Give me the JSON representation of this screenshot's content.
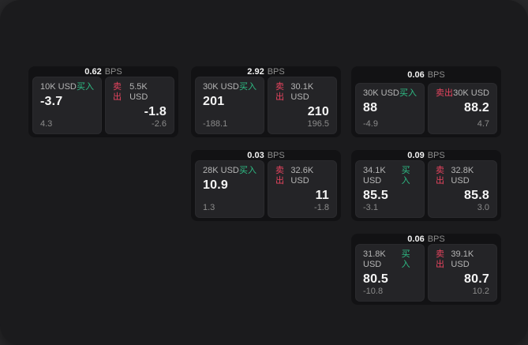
{
  "ui": {
    "bps_unit": "BPS",
    "buy_label": "买入",
    "sell_label": "卖出"
  },
  "colors": {
    "buy": "#2ebd85",
    "sell": "#e8445f",
    "page_bg": "#28282a",
    "container_bg": "#1b1b1d",
    "card_bg": "#121214",
    "panel_bg": "#242427"
  },
  "cards": [
    {
      "row": 1,
      "col": 1,
      "bps": "0.62",
      "buy": {
        "amount": "10K USD",
        "value": "-3.7",
        "sub": "4.3"
      },
      "sell": {
        "amount": "5.5K USD",
        "value": "-1.8",
        "sub": "-2.6"
      }
    },
    {
      "row": 1,
      "col": 2,
      "bps": "2.92",
      "buy": {
        "amount": "30K USD",
        "value": "201",
        "sub": "-188.1"
      },
      "sell": {
        "amount": "30.1K USD",
        "value": "210",
        "sub": "196.5"
      }
    },
    {
      "row": 1,
      "col": 3,
      "bps": "0.06",
      "buy": {
        "amount": "30K USD",
        "value": "88",
        "sub": "-4.9"
      },
      "sell": {
        "amount": "30K USD",
        "value": "88.2",
        "sub": "4.7"
      }
    },
    {
      "row": 2,
      "col": 2,
      "bps": "0.03",
      "buy": {
        "amount": "28K USD",
        "value": "10.9",
        "sub": "1.3"
      },
      "sell": {
        "amount": "32.6K USD",
        "value": "11",
        "sub": "-1.8"
      }
    },
    {
      "row": 2,
      "col": 3,
      "bps": "0.09",
      "buy": {
        "amount": "34.1K USD",
        "value": "85.5",
        "sub": "-3.1"
      },
      "sell": {
        "amount": "32.8K USD",
        "value": "85.8",
        "sub": "3.0"
      }
    },
    {
      "row": 3,
      "col": 3,
      "bps": "0.06",
      "buy": {
        "amount": "31.8K USD",
        "value": "80.5",
        "sub": "-10.8"
      },
      "sell": {
        "amount": "39.1K USD",
        "value": "80.7",
        "sub": "10.2"
      }
    }
  ]
}
